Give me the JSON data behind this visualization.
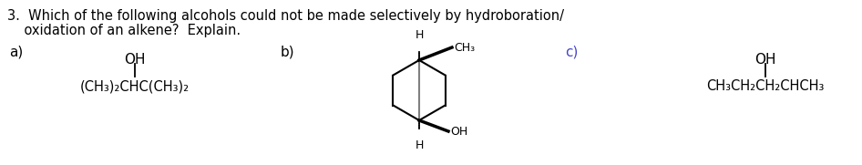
{
  "title_line1": "3.  Which of the following alcohols could not be made selectively by hydroboration/",
  "title_line2": "    oxidation of an alkene?  Explain.",
  "bg_color": "#ffffff",
  "text_color": "#000000",
  "label_c_color": "#4444cc",
  "label_a": "a)",
  "label_b": "b)",
  "label_c": "c)",
  "struct_a_oh": "OH",
  "struct_a_formula": "(CH₃)₂CHC(CH₃)₂",
  "struct_c_oh": "OH",
  "struct_c_formula": "CH₃CH₂CH₂CHCH₃",
  "fig_width": 9.46,
  "fig_height": 1.81,
  "dpi": 100
}
